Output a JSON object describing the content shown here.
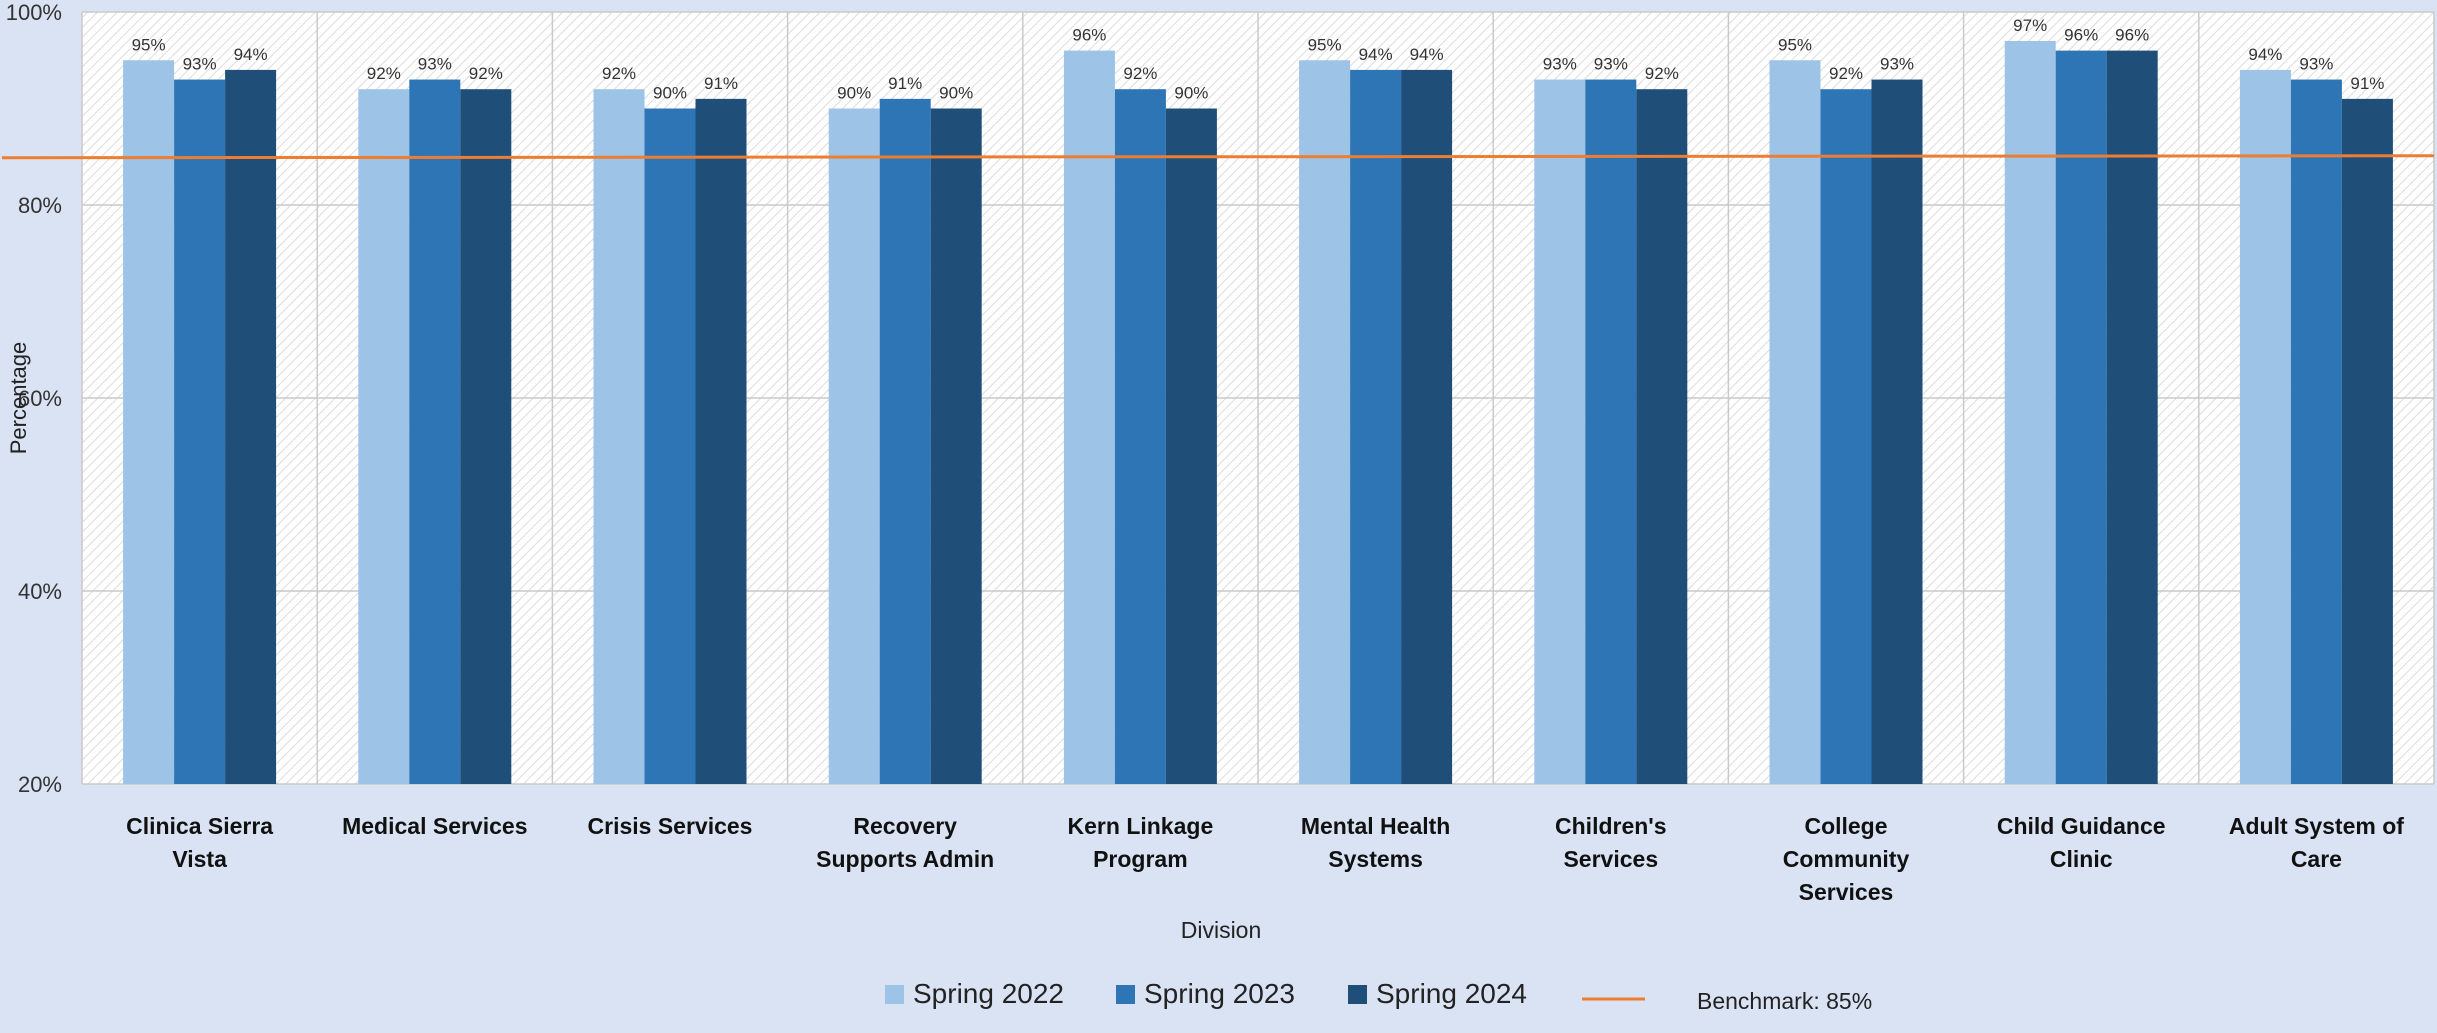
{
  "chart_data": {
    "type": "bar",
    "title": "",
    "xlabel": "Division",
    "ylabel": "Percentage",
    "ylim": [
      20,
      100
    ],
    "yticks": [
      20,
      40,
      60,
      80,
      100
    ],
    "ytick_labels": [
      "20%",
      "40%",
      "60%",
      "80%",
      "100%"
    ],
    "grid": true,
    "legend_position": "bottom",
    "categories": [
      [
        "Clinica Sierra",
        "Vista"
      ],
      [
        "Medical Services"
      ],
      [
        "Crisis  Services"
      ],
      [
        "Recovery",
        "Supports  Admin"
      ],
      [
        "Kern Linkage",
        "Program"
      ],
      [
        "Mental Health",
        "Systems"
      ],
      [
        "Children's",
        "Services"
      ],
      [
        "College",
        "Community",
        "Services"
      ],
      [
        "Child Guidance",
        "Clinic"
      ],
      [
        "Adult System of",
        "Care"
      ]
    ],
    "series": [
      {
        "name": "Spring 2022",
        "color": "#9dc3e6",
        "values": [
          95,
          92,
          92,
          90,
          96,
          95,
          93,
          95,
          97,
          94
        ]
      },
      {
        "name": "Spring 2023",
        "color": "#2e75b6",
        "values": [
          93,
          93,
          90,
          91,
          92,
          94,
          93,
          92,
          96,
          93
        ]
      },
      {
        "name": "Spring 2024",
        "color": "#1f4e79",
        "values": [
          94,
          92,
          91,
          90,
          90,
          94,
          92,
          93,
          96,
          91
        ]
      }
    ],
    "value_label_suffix": "%",
    "benchmark": {
      "label": "Benchmark: 85%",
      "value": 85,
      "color": "#ed7d31"
    }
  }
}
